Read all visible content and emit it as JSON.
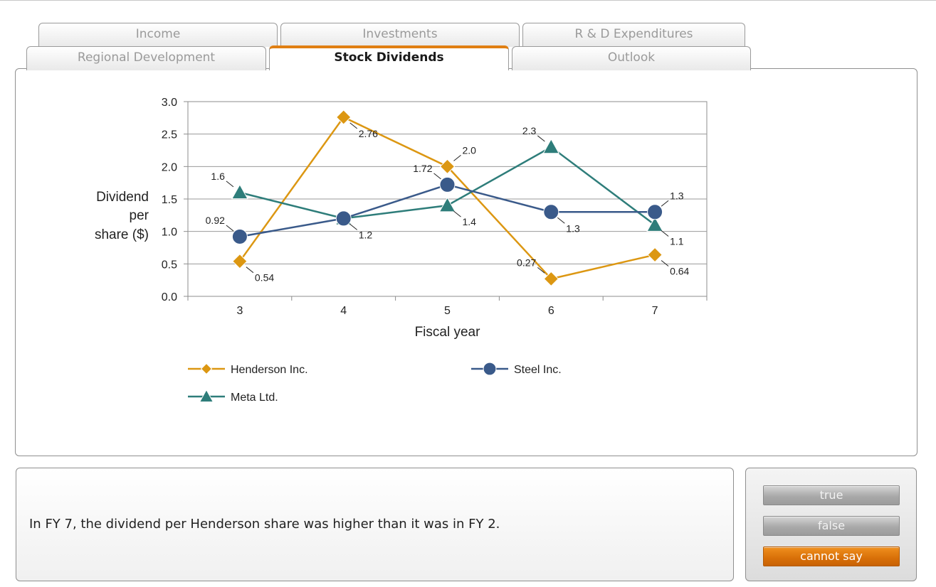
{
  "tabs": {
    "row1": [
      {
        "label": "Income"
      },
      {
        "label": "Investments"
      },
      {
        "label": "R & D Expenditures"
      }
    ],
    "row2": [
      {
        "label": "Regional Development"
      },
      {
        "label": "Stock Dividends"
      },
      {
        "label": "Outlook"
      }
    ],
    "active": "Stock Dividends"
  },
  "chart_data": {
    "type": "line",
    "xlabel": "Fiscal year",
    "ylabel": "Dividend per share ($)",
    "ylabel_lines": [
      "Dividend",
      "per",
      "share ($)"
    ],
    "x": [
      3,
      4,
      5,
      6,
      7
    ],
    "ylim": [
      0,
      3
    ],
    "yticks": [
      "0.0",
      "0.5",
      "1.0",
      "1.5",
      "2.0",
      "2.5",
      "3.0"
    ],
    "grid": "horizontal",
    "legend_position": "bottom",
    "series": [
      {
        "name": "Henderson Inc.",
        "color": "#dc9712",
        "marker": "diamond",
        "values": [
          0.54,
          2.76,
          2.0,
          0.27,
          0.64
        ],
        "labels": [
          "0.54",
          "2.76",
          "2.0",
          "0.27",
          "0.64"
        ]
      },
      {
        "name": "Steel Inc.",
        "color": "#3a5a8a",
        "marker": "circle",
        "values": [
          0.92,
          1.2,
          1.72,
          1.3,
          1.3
        ],
        "labels": [
          "0.92",
          "",
          "1.72",
          "1.3",
          "1.3"
        ]
      },
      {
        "name": "Meta Ltd.",
        "color": "#2e7d7a",
        "marker": "triangle",
        "values": [
          1.6,
          1.2,
          1.4,
          2.3,
          1.1
        ],
        "labels": [
          "1.6",
          "1.2",
          "1.4",
          "2.3",
          "1.1"
        ]
      }
    ]
  },
  "question": {
    "text": "In FY 7, the dividend per Henderson share was higher than it was in FY 2."
  },
  "answers": [
    {
      "label": "true",
      "selected": false
    },
    {
      "label": "false",
      "selected": false
    },
    {
      "label": "cannot say",
      "selected": true
    }
  ]
}
